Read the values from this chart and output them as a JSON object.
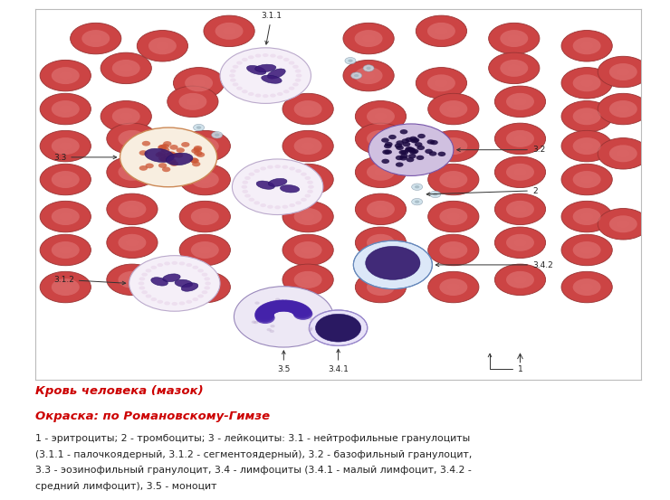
{
  "title": "Кровь человека (мазок)",
  "subtitle": "Окраска: по Романовскому-Гимзе",
  "caption_line1": "1 - эритроциты; 2 - тромбоциты; 3 - лейкоциты: 3.1 - нейтрофильные гранулоциты",
  "caption_line2": "(3.1.1 - палочкоядерный, 3.1.2 - сегментоядерный), 3.2 - базофильный гранулоцит,",
  "caption_line3": "3.3 - эозинофильный гранулоцит, 3.4 - лимфоциты (3.4.1 - малый лимфоцит, 3.4.2 -",
  "caption_line4": "средний лимфоцит), 3.5 - моноцит",
  "bg_color": "#ffffff",
  "title_color": "#cc0000",
  "subtitle_color": "#cc0000",
  "text_color": "#222222",
  "border_color": "#bbbbbb",
  "erythrocyte_fill": "#cc4444",
  "erythrocyte_center": "#bb3333",
  "erythrocyte_edge": "#993333"
}
